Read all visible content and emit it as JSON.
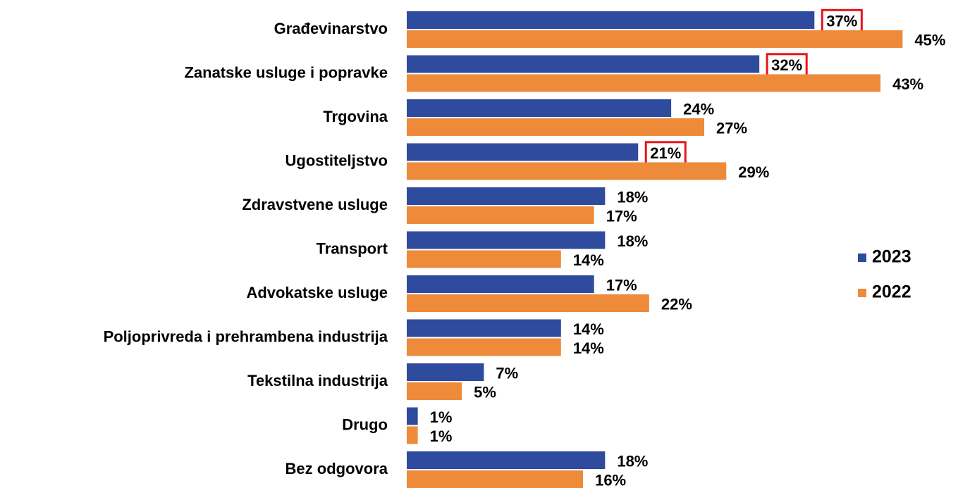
{
  "chart_data": {
    "type": "bar",
    "orientation": "horizontal",
    "categories": [
      "Građevinarstvo",
      "Zanatske usluge i popravke",
      "Trgovina",
      "Ugostiteljstvo",
      "Zdravstvene usluge",
      "Transport",
      "Advokatske usluge",
      "Poljoprivreda i prehrambena industrija",
      "Tekstilna industrija",
      "Drugo",
      "Bez odgovora"
    ],
    "series": [
      {
        "name": "2023",
        "color": "#2f4b9e",
        "values": [
          37,
          32,
          24,
          21,
          18,
          18,
          17,
          14,
          7,
          1,
          18
        ],
        "value_labels": [
          "37%",
          "32%",
          "24%",
          "21%",
          "18%",
          "18%",
          "17%",
          "14%",
          "7%",
          "1%",
          "18%"
        ],
        "highlight_indices": [
          0,
          1,
          3
        ],
        "highlight_color": "#e8131b"
      },
      {
        "name": "2022",
        "color": "#ed8b3a",
        "values": [
          45,
          43,
          27,
          29,
          17,
          14,
          22,
          14,
          5,
          1,
          16
        ],
        "value_labels": [
          "45%",
          "43%",
          "27%",
          "29%",
          "17%",
          "14%",
          "22%",
          "14%",
          "5%",
          "1%",
          "16%"
        ]
      }
    ],
    "legend": "right"
  }
}
